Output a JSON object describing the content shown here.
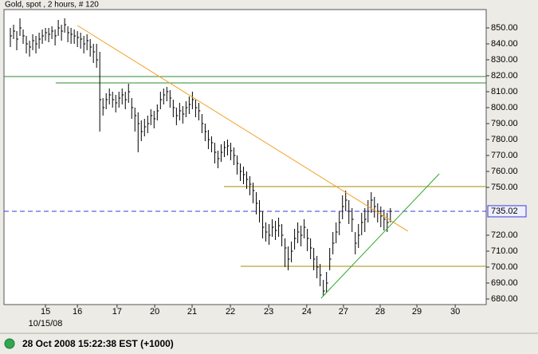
{
  "chart_data": {
    "type": "ohlc",
    "title": "Gold, spot , 2 hours, # 120",
    "x_sublabel": "10/15/08",
    "status": "28 Oct 2008 15:22:38  EST (+1000)",
    "color": "#000000",
    "xlim": [
      0,
      151
    ],
    "ylim": [
      676.5,
      861.5
    ],
    "xticks": [
      {
        "value": 13,
        "label": "15"
      },
      {
        "value": 23,
        "label": "16"
      },
      {
        "value": 35.4,
        "label": "17"
      },
      {
        "value": 47.2,
        "label": "20"
      },
      {
        "value": 58.9,
        "label": "21"
      },
      {
        "value": 70.9,
        "label": "22"
      },
      {
        "value": 82.9,
        "label": "23"
      },
      {
        "value": 94.8,
        "label": "24"
      },
      {
        "value": 106.3,
        "label": "27"
      },
      {
        "value": 117.8,
        "label": "28"
      },
      {
        "value": 129.3,
        "label": "29"
      },
      {
        "value": 141.3,
        "label": "30"
      }
    ],
    "yticks": [
      {
        "value": 680,
        "label": "680.00"
      },
      {
        "value": 690,
        "label": "690.00"
      },
      {
        "value": 700,
        "label": "700.00"
      },
      {
        "value": 710,
        "label": "710.00"
      },
      {
        "value": 720,
        "label": "720.00"
      },
      {
        "value": 750,
        "label": "750.00"
      },
      {
        "value": 760,
        "label": "760.00"
      },
      {
        "value": 770,
        "label": "770.00"
      },
      {
        "value": 780,
        "label": "780.00"
      },
      {
        "value": 790,
        "label": "790.00"
      },
      {
        "value": 800,
        "label": "800.00"
      },
      {
        "value": 810,
        "label": "810.00"
      },
      {
        "value": 820,
        "label": "820.00"
      },
      {
        "value": 830,
        "label": "830.00"
      },
      {
        "value": 840,
        "label": "840.00"
      },
      {
        "value": 850,
        "label": "850.00"
      }
    ],
    "current_price": {
      "value": 735.02,
      "label": "735.02",
      "color": "#3a3adc"
    },
    "x": [
      2,
      3,
      4,
      5,
      6,
      7,
      8,
      9,
      10,
      11,
      12,
      13,
      14,
      15,
      16,
      17,
      18,
      19,
      20,
      21,
      22,
      23,
      24,
      25,
      26,
      27,
      28,
      29,
      30,
      31,
      32,
      33,
      34,
      35,
      36,
      37,
      38,
      39,
      40,
      41,
      42,
      43,
      44,
      45,
      46,
      47,
      48,
      49,
      50,
      51,
      52,
      53,
      54,
      55,
      56,
      57,
      58,
      59,
      60,
      61,
      62,
      63,
      64,
      65,
      66,
      67,
      68,
      69,
      70,
      71,
      72,
      73,
      74,
      75,
      76,
      77,
      78,
      79,
      80,
      81,
      82,
      83,
      84,
      85,
      86,
      87,
      88,
      89,
      90,
      91,
      92,
      93,
      94,
      95,
      96,
      97,
      98,
      99,
      100,
      101,
      102,
      103,
      104,
      105,
      106,
      107,
      108,
      109,
      110,
      111,
      112,
      113,
      114,
      115,
      116,
      117,
      118,
      119,
      120,
      121
    ],
    "high": [
      850,
      852,
      848,
      856,
      849,
      845,
      842,
      846,
      845,
      847,
      849,
      850,
      850,
      851,
      849,
      855,
      852,
      856,
      851,
      850,
      849,
      848,
      847,
      845,
      846,
      843,
      840,
      840,
      835,
      806,
      809,
      812,
      810,
      808,
      810,
      812,
      810,
      815,
      806,
      800,
      797,
      792,
      793,
      795,
      799,
      798,
      802,
      810,
      812,
      813,
      811,
      805,
      800,
      803,
      801,
      804,
      807,
      810,
      805,
      803,
      796,
      790,
      786,
      782,
      778,
      773,
      777,
      779,
      780,
      778,
      775,
      770,
      765,
      763,
      760,
      757,
      753,
      747,
      742,
      735,
      728,
      727,
      730,
      729,
      731,
      727,
      718,
      713,
      716,
      724,
      728,
      726,
      730,
      724,
      718,
      712,
      707,
      702,
      692,
      697,
      712,
      722,
      728,
      735,
      745,
      748,
      742,
      737,
      722,
      727,
      734,
      737,
      742,
      747,
      744,
      740,
      738,
      736,
      734,
      737
    ],
    "low": [
      838,
      843,
      836,
      845,
      840,
      834,
      832,
      836,
      834,
      837,
      840,
      842,
      841,
      843,
      839,
      845,
      842,
      847,
      841,
      840,
      840,
      838,
      837,
      834,
      836,
      832,
      828,
      825,
      785,
      795,
      799,
      802,
      800,
      797,
      800,
      802,
      799,
      803,
      793,
      785,
      772,
      779,
      782,
      784,
      789,
      787,
      792,
      799,
      802,
      804,
      800,
      794,
      789,
      792,
      790,
      794,
      796,
      799,
      794,
      792,
      784,
      779,
      774,
      772,
      765,
      762,
      766,
      769,
      770,
      767,
      764,
      758,
      754,
      752,
      749,
      745,
      740,
      733,
      728,
      718,
      716,
      714,
      719,
      717,
      719,
      713,
      700,
      698,
      703,
      711,
      715,
      713,
      718,
      710,
      705,
      698,
      693,
      688,
      682,
      684,
      698,
      708,
      715,
      720,
      730,
      735,
      727,
      722,
      708,
      712,
      720,
      722,
      728,
      734,
      731,
      728,
      725,
      723,
      722,
      728
    ],
    "close": [
      845,
      848,
      843,
      850,
      845,
      840,
      838,
      842,
      840,
      843,
      845,
      847,
      846,
      848,
      845,
      850,
      848,
      852,
      847,
      846,
      845,
      844,
      843,
      840,
      842,
      838,
      835,
      830,
      805,
      800,
      805,
      808,
      805,
      803,
      806,
      808,
      805,
      810,
      800,
      795,
      790,
      785,
      788,
      790,
      795,
      793,
      798,
      805,
      808,
      810,
      806,
      800,
      795,
      798,
      796,
      800,
      802,
      805,
      800,
      798,
      790,
      785,
      780,
      778,
      772,
      768,
      772,
      775,
      776,
      773,
      770,
      765,
      760,
      758,
      755,
      752,
      748,
      740,
      735,
      725,
      722,
      720,
      725,
      723,
      726,
      720,
      712,
      705,
      710,
      718,
      722,
      720,
      725,
      718,
      712,
      705,
      700,
      695,
      685,
      690,
      705,
      715,
      722,
      728,
      738,
      742,
      735,
      730,
      715,
      720,
      728,
      730,
      735,
      742,
      738,
      735,
      732,
      730,
      728,
      735
    ],
    "levels": [
      {
        "level": 819.5,
        "from": 0,
        "color": "#2e8b2e"
      },
      {
        "level": 815.5,
        "from": 16.2,
        "color": "#2e8b2e"
      },
      {
        "level": 750.5,
        "from": 68.9,
        "color": "#a08c00"
      },
      {
        "level": 700.5,
        "from": 74.1,
        "color": "#a08c00"
      }
    ],
    "trendlines": [
      {
        "x1": 23,
        "y1": 851.5,
        "x2": 126.5,
        "y2": 722.5,
        "color": "#f0a020"
      },
      {
        "x1": 99.3,
        "y1": 680.5,
        "x2": 136.3,
        "y2": 758.5,
        "color": "#2ea82e"
      }
    ]
  }
}
